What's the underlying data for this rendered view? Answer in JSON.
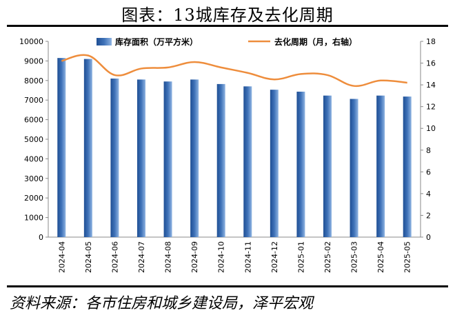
{
  "figure": {
    "title": "图表：13城库存及去化周期",
    "source": "资料来源：各市住房和城乡建设局，泽平宏观"
  },
  "chart_data": {
    "type": "bar",
    "categories": [
      "2024-04",
      "2024-05",
      "2024-06",
      "2024-07",
      "2024-08",
      "2024-09",
      "2024-10",
      "2024-11",
      "2024-12",
      "2025-01",
      "2025-02",
      "2025-03",
      "2025-04",
      "2025-05"
    ],
    "series": [
      {
        "name": "库存面积（万平方米）",
        "type": "bar",
        "axis": "left",
        "color": "#3f72b8",
        "values": [
          9150,
          9100,
          8100,
          8050,
          7950,
          8050,
          7820,
          7700,
          7530,
          7430,
          7230,
          7060,
          7230,
          7180
        ]
      },
      {
        "name": "去化周期（月，右轴）",
        "type": "line",
        "axis": "right",
        "color": "#ee8d3c",
        "values": [
          16.2,
          16.7,
          14.9,
          15.5,
          15.6,
          16.1,
          15.6,
          15.1,
          14.5,
          15.0,
          14.9,
          13.9,
          14.4,
          14.2
        ]
      }
    ],
    "y_left": {
      "min": 0,
      "max": 10000,
      "ticks": [
        0,
        1000,
        2000,
        3000,
        4000,
        5000,
        6000,
        7000,
        8000,
        9000,
        10000
      ]
    },
    "y_right": {
      "min": 0,
      "max": 18,
      "ticks": [
        0,
        2,
        4,
        6,
        8,
        10,
        12,
        14,
        16,
        18
      ]
    },
    "grid": false,
    "legend_position": "top"
  }
}
